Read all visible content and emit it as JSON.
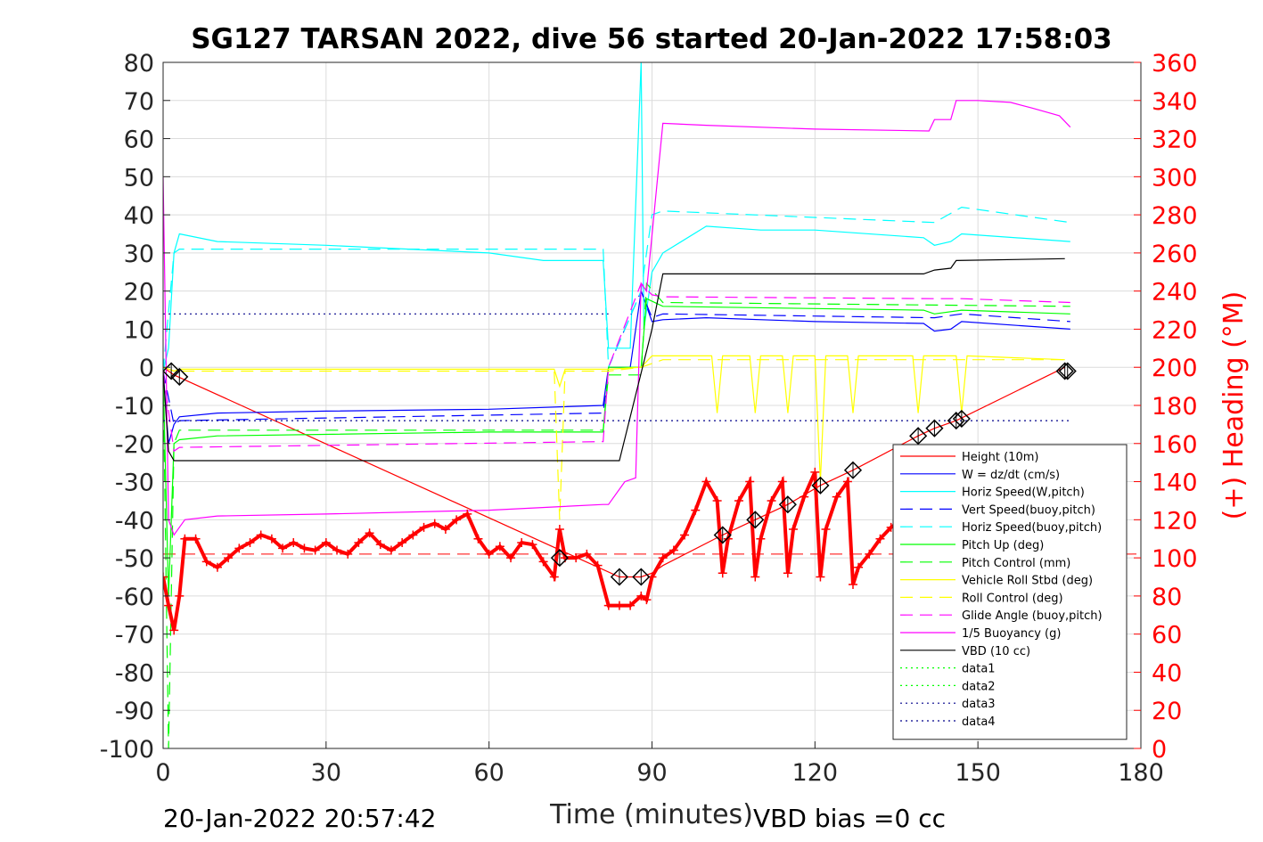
{
  "chart_data": {
    "type": "line",
    "title": "SG127 TARSAN 2022, dive 56 started 20-Jan-2022 17:58:03",
    "xlabel": "Time (minutes)",
    "ylabel_right": "(+) Heading (°M)",
    "footer_left": "20-Jan-2022 20:57:42",
    "footer_right": "VBD bias =0 cc",
    "xlim": [
      0,
      180
    ],
    "ylim": [
      -100,
      80
    ],
    "ylim_right": [
      0,
      360
    ],
    "xticks": [
      "0",
      "30",
      "60",
      "90",
      "120",
      "150",
      "180"
    ],
    "yticks": [
      "80",
      "70",
      "60",
      "50",
      "40",
      "30",
      "20",
      "10",
      "0",
      "-10",
      "-20",
      "-30",
      "-40",
      "-50",
      "-60",
      "-70",
      "-80",
      "-90",
      "-100"
    ],
    "yticks_right": [
      "360",
      "340",
      "320",
      "300",
      "280",
      "260",
      "240",
      "220",
      "200",
      "180",
      "160",
      "140",
      "120",
      "100",
      "80",
      "60",
      "40",
      "20",
      "0"
    ],
    "grid": true,
    "legend_position": "lower-right",
    "colors": {
      "red": "#ff0000",
      "blue": "#0000ff",
      "cyan": "#00ffff",
      "green": "#00ff00",
      "yellow": "#ffff00",
      "magenta": "#ff00ff",
      "black": "#000000",
      "navy": "#00008b",
      "heading": "#ff0000"
    },
    "series": [
      {
        "name": "Height (10m)",
        "color": "#ff0000",
        "style": "solid",
        "x": [
          0,
          2,
          84,
          88,
          90,
          92,
          103,
          109,
          115,
          121,
          127,
          139,
          142,
          146,
          166
        ],
        "y": [
          0,
          -2,
          -55,
          -55,
          -54,
          -52,
          -44,
          -40,
          -36,
          -31,
          -27,
          -18,
          -16,
          -14,
          0
        ]
      },
      {
        "name": "W = dz/dt (cm/s)",
        "color": "#0000ff",
        "style": "solid",
        "x": [
          0,
          1,
          2,
          3,
          10,
          30,
          60,
          81,
          82,
          86,
          88,
          90,
          92,
          100,
          120,
          140,
          142,
          145,
          147,
          167
        ],
        "y": [
          -1,
          -20,
          -15,
          -13,
          -12,
          -11.5,
          -11,
          -10,
          0,
          0,
          20,
          12,
          12.5,
          13,
          12,
          11.5,
          9.5,
          10,
          12,
          10
        ]
      },
      {
        "name": "Horiz Speed(W,pitch)",
        "color": "#00ffff",
        "style": "solid",
        "x": [
          0,
          1,
          2,
          3,
          10,
          30,
          60,
          70,
          81,
          82,
          86,
          88,
          88.5,
          90,
          92,
          100,
          110,
          120,
          140,
          142,
          145,
          147,
          167
        ],
        "y": [
          -1,
          5,
          30,
          35,
          33,
          32,
          30,
          28,
          28,
          5,
          5,
          80,
          10,
          25,
          30,
          37,
          36,
          36,
          34,
          32,
          33,
          35,
          33
        ]
      },
      {
        "name": "Vert Speed(buoy,pitch)",
        "color": "#0000ff",
        "style": "dashed",
        "x": [
          0,
          2,
          3,
          81,
          82,
          88,
          90,
          92,
          142,
          147,
          167
        ],
        "y": [
          -1,
          -15,
          -14,
          -12,
          0,
          20,
          13,
          14,
          13,
          14,
          12
        ]
      },
      {
        "name": "Horiz Speed(buoy,pitch)",
        "color": "#00ffff",
        "style": "dashed",
        "x": [
          0,
          2,
          3,
          81,
          82,
          88,
          90,
          92,
          142,
          147,
          167
        ],
        "y": [
          -1,
          30,
          31,
          31,
          0,
          20,
          40,
          41,
          38,
          42,
          38
        ]
      },
      {
        "name": "Pitch Up (deg)",
        "color": "#00ff00",
        "style": "solid",
        "x": [
          0,
          1,
          2,
          3,
          10,
          60,
          81,
          82,
          88,
          89,
          92,
          140,
          142,
          147,
          167
        ],
        "y": [
          -1,
          -60,
          -20,
          -19,
          -18,
          -17,
          -17,
          0,
          0,
          18,
          16,
          15,
          14,
          15,
          14
        ]
      },
      {
        "name": "Pitch Control (mm)",
        "color": "#00ff00",
        "style": "dashed",
        "x": [
          0,
          1,
          2,
          3,
          81,
          82,
          88,
          89,
          92,
          167
        ],
        "y": [
          -1,
          -100,
          -20,
          -16.5,
          -16.5,
          -2,
          -2,
          22,
          17,
          16
        ]
      },
      {
        "name": "Vehicle Roll Stbd (deg)",
        "color": "#ffff00",
        "style": "solid",
        "x": [
          0,
          2,
          3,
          72,
          73,
          74,
          81,
          82,
          88,
          90,
          92,
          101,
          102,
          103,
          108,
          109,
          110,
          114,
          115,
          116,
          120,
          121,
          122,
          126,
          127,
          128,
          138,
          139,
          140,
          146,
          147,
          148,
          166
        ],
        "y": [
          0,
          -1,
          -0.5,
          -0.5,
          -5,
          -0.5,
          -0.5,
          -0.5,
          0,
          3,
          3,
          3,
          -12,
          3,
          3,
          -12,
          3,
          3,
          -12,
          3,
          3,
          -30,
          3,
          3,
          -12,
          3,
          3,
          -12,
          3,
          3,
          -12,
          3,
          2
        ]
      },
      {
        "name": "Roll Control (deg)",
        "color": "#ffff00",
        "style": "dashed",
        "x": [
          0,
          2,
          3,
          72,
          73,
          74,
          81,
          82,
          88,
          92,
          166
        ],
        "y": [
          0,
          -1,
          -1,
          -1,
          -40,
          -1,
          -1,
          -1,
          0,
          2,
          2
        ]
      },
      {
        "name": "Glide Angle (buoy,pitch)",
        "color": "#ff00ff",
        "style": "dashed",
        "x": [
          0,
          2,
          3,
          81,
          82,
          88,
          90,
          92,
          142,
          147,
          167
        ],
        "y": [
          -1,
          -22,
          -21,
          -19.5,
          0,
          22,
          19,
          18.5,
          18,
          18,
          17
        ]
      },
      {
        "name": "1/5 Buoyancy (g)",
        "color": "#ff00ff",
        "style": "solid",
        "x": [
          0,
          1,
          2,
          4,
          10,
          30,
          60,
          81,
          82,
          85,
          87,
          88,
          89,
          92,
          100,
          120,
          141,
          142,
          145,
          146,
          150,
          156,
          160,
          165,
          167
        ],
        "y": [
          50,
          -40,
          -44,
          -40,
          -39,
          -38.5,
          -37.5,
          -36,
          -36,
          -30,
          -29,
          22,
          20,
          64,
          63.5,
          62.5,
          62,
          65,
          65,
          70,
          70,
          69.5,
          68,
          66,
          63
        ]
      },
      {
        "name": "VBD (10 cc)",
        "color": "#000000",
        "style": "solid",
        "x": [
          0,
          1,
          2,
          84,
          90,
          92,
          140,
          142,
          145,
          146,
          166
        ],
        "y": [
          -1,
          -22,
          -24.5,
          -24.5,
          10,
          24.5,
          24.5,
          25.5,
          26,
          28,
          28.5
        ]
      },
      {
        "name": "data1",
        "color": "#00ff00",
        "style": "dotted",
        "x": [],
        "y": []
      },
      {
        "name": "data2",
        "color": "#00ff00",
        "style": "dotted",
        "x": [],
        "y": []
      },
      {
        "name": "data3",
        "color": "#00008b",
        "style": "dotted",
        "x": [
          0,
          167
        ],
        "y": [
          -14,
          -14
        ]
      },
      {
        "name": "data4",
        "color": "#00008b",
        "style": "dotted",
        "x": [
          0,
          82
        ],
        "y": [
          14,
          14
        ]
      }
    ],
    "reference_lines": [
      {
        "color": "#ff0000",
        "style": "dashed",
        "axis": "right",
        "y": 102
      }
    ],
    "heading": {
      "color": "#ff0000",
      "marker": "+",
      "axis": "right",
      "x": [
        0,
        1,
        2,
        3,
        4,
        6,
        8,
        10,
        12,
        14,
        16,
        18,
        20,
        22,
        24,
        26,
        28,
        30,
        32,
        34,
        36,
        38,
        40,
        42,
        44,
        46,
        48,
        50,
        52,
        54,
        56,
        58,
        60,
        62,
        64,
        66,
        68,
        70,
        72,
        73,
        74,
        76,
        78,
        80,
        82,
        84,
        86,
        88,
        89,
        90,
        92,
        94,
        96,
        98,
        100,
        102,
        103,
        104,
        106,
        108,
        109,
        110,
        112,
        114,
        115,
        116,
        118,
        120,
        121,
        122,
        124,
        126,
        127,
        128,
        130,
        132,
        134,
        136
      ],
      "y": [
        90,
        75,
        62,
        80,
        110,
        110,
        98,
        95,
        100,
        105,
        108,
        112,
        110,
        105,
        108,
        105,
        104,
        108,
        104,
        102,
        108,
        113,
        107,
        104,
        108,
        112,
        116,
        118,
        115,
        120,
        123,
        110,
        102,
        106,
        100,
        108,
        107,
        98,
        90,
        115,
        100,
        100,
        102,
        96,
        75,
        75,
        75,
        80,
        78,
        90,
        100,
        104,
        112,
        125,
        140,
        130,
        92,
        110,
        130,
        140,
        90,
        110,
        130,
        140,
        92,
        115,
        132,
        145,
        90,
        115,
        132,
        140,
        86,
        95,
        102,
        110,
        116,
        120
      ]
    },
    "markers": {
      "color": "#000000",
      "shape": "diamond",
      "x": [
        1.5,
        3,
        73,
        84,
        88,
        103,
        109,
        115,
        121,
        127,
        139,
        142,
        146,
        147,
        166,
        166.5
      ],
      "y": [
        -1,
        -2.5,
        -50,
        -55,
        -55,
        -44,
        -40,
        -36,
        -31,
        -27,
        -18,
        -16,
        -14,
        -13.5,
        -1,
        -1
      ]
    }
  }
}
